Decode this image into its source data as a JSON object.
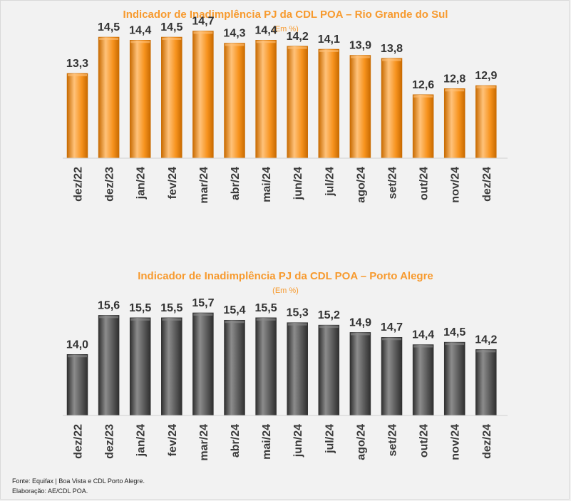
{
  "chart_data": [
    {
      "type": "bar",
      "title": "Indicador de Inadimplência PJ da CDL POA – Rio Grande do Sul",
      "subtitle": "(Em %)",
      "categories": [
        "dez/22",
        "dez/23",
        "jan/24",
        "fev/24",
        "mar/24",
        "abr/24",
        "mai/24",
        "jun/24",
        "jul/24",
        "ago/24",
        "set/24",
        "out/24",
        "nov/24",
        "dez/24"
      ],
      "values": [
        13.3,
        14.5,
        14.4,
        14.5,
        14.7,
        14.3,
        14.4,
        14.2,
        14.1,
        13.9,
        13.8,
        12.6,
        12.8,
        12.9
      ],
      "labels": [
        "13,3",
        "14,5",
        "14,4",
        "14,5",
        "14,7",
        "14,3",
        "14,4",
        "14,2",
        "14,1",
        "13,9",
        "13,8",
        "12,6",
        "12,8",
        "12,9"
      ],
      "color": "#f7931e",
      "color_dark": "#c86a00",
      "color_light": "#ffc27a"
    },
    {
      "type": "bar",
      "title": "Indicador de Inadimplência PJ da CDL POA – Porto Alegre",
      "subtitle": "(Em %)",
      "categories": [
        "dez/22",
        "dez/23",
        "jan/24",
        "fev/24",
        "mar/24",
        "abr/24",
        "mai/24",
        "jun/24",
        "jul/24",
        "ago/24",
        "set/24",
        "out/24",
        "nov/24",
        "dez/24"
      ],
      "values": [
        14.0,
        15.6,
        15.5,
        15.5,
        15.7,
        15.4,
        15.5,
        15.3,
        15.2,
        14.9,
        14.7,
        14.4,
        14.5,
        14.2
      ],
      "labels": [
        "14,0",
        "15,6",
        "15,5",
        "15,5",
        "15,7",
        "15,4",
        "15,5",
        "15,3",
        "15,2",
        "14,9",
        "14,7",
        "14,4",
        "14,5",
        "14,2"
      ],
      "color": "#595959",
      "color_dark": "#2e2e2e",
      "color_light": "#8c8c8c"
    }
  ],
  "footer": {
    "source": "Fonte: Equifax | Boa Vista e CDL Porto Alegre.",
    "credit": "Elaboração: AE/CDL POA."
  }
}
